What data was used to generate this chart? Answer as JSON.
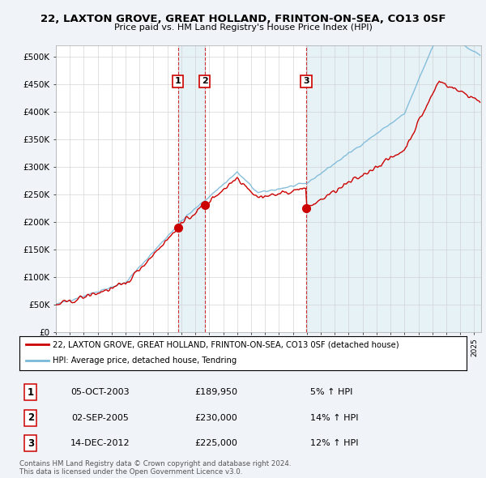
{
  "title": "22, LAXTON GROVE, GREAT HOLLAND, FRINTON-ON-SEA, CO13 0SF",
  "subtitle": "Price paid vs. HM Land Registry's House Price Index (HPI)",
  "ylim": [
    0,
    520000
  ],
  "yticks": [
    0,
    50000,
    100000,
    150000,
    200000,
    250000,
    300000,
    350000,
    400000,
    450000,
    500000
  ],
  "ytick_labels": [
    "£0",
    "£50K",
    "£100K",
    "£150K",
    "£200K",
    "£250K",
    "£300K",
    "£350K",
    "£400K",
    "£450K",
    "£500K"
  ],
  "legend_line1": "22, LAXTON GROVE, GREAT HOLLAND, FRINTON-ON-SEA, CO13 0SF (detached house)",
  "legend_line2": "HPI: Average price, detached house, Tendring",
  "transactions": [
    {
      "num": 1,
      "date": "05-OCT-2003",
      "price": 189950,
      "pct": "5% ↑ HPI",
      "x_year": 2003.75
    },
    {
      "num": 2,
      "date": "02-SEP-2005",
      "price": 230000,
      "pct": "14% ↑ HPI",
      "x_year": 2005.67
    },
    {
      "num": 3,
      "date": "14-DEC-2012",
      "price": 225000,
      "pct": "12% ↑ HPI",
      "x_year": 2012.95
    }
  ],
  "footnote1": "Contains HM Land Registry data © Crown copyright and database right 2024.",
  "footnote2": "This data is licensed under the Open Government Licence v3.0.",
  "hpi_color": "#7ab8d8",
  "price_color": "#cc0000",
  "shade_color": "#d0e8f5",
  "background_color": "#f0f4f8",
  "plot_bg_color": "#ffffff",
  "grid_color": "#cccccc",
  "xlim_start": 1995,
  "xlim_end": 2025.5
}
